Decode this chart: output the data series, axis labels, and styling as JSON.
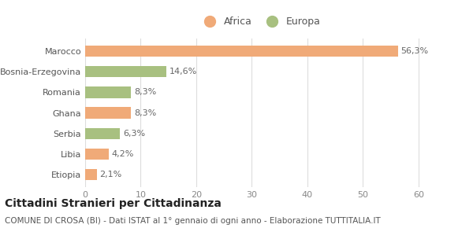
{
  "categories": [
    "Marocco",
    "Bosnia-Erzegovina",
    "Romania",
    "Ghana",
    "Serbia",
    "Libia",
    "Etiopia"
  ],
  "values": [
    56.3,
    14.6,
    8.3,
    8.3,
    6.3,
    4.2,
    2.1
  ],
  "labels": [
    "56,3%",
    "14,6%",
    "8,3%",
    "8,3%",
    "6,3%",
    "4,2%",
    "2,1%"
  ],
  "colors": [
    "#f0aa78",
    "#a8c080",
    "#a8c080",
    "#f0aa78",
    "#a8c080",
    "#f0aa78",
    "#f0aa78"
  ],
  "legend_africa_color": "#f0aa78",
  "legend_europa_color": "#a8c080",
  "xlim": [
    0,
    63
  ],
  "xticks": [
    0,
    10,
    20,
    30,
    40,
    50,
    60
  ],
  "title": "Cittadini Stranieri per Cittadinanza",
  "subtitle": "COMUNE DI CROSA (BI) - Dati ISTAT al 1° gennaio di ogni anno - Elaborazione TUTTITALIA.IT",
  "title_fontsize": 10,
  "subtitle_fontsize": 7.5,
  "bar_label_fontsize": 8,
  "tick_label_fontsize": 8,
  "legend_fontsize": 9,
  "background_color": "#ffffff",
  "grid_color": "#dddddd",
  "bar_height": 0.55
}
